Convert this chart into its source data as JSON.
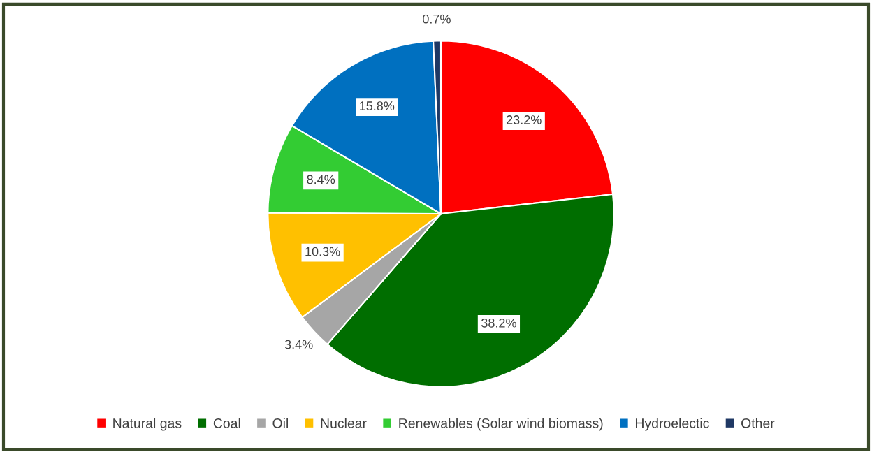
{
  "chart_data": {
    "type": "pie",
    "categories": [
      "Natural gas",
      "Coal",
      "Oil",
      "Nuclear",
      "Renewables (Solar wind biomass)",
      "Hydroelectic",
      "Other"
    ],
    "values": [
      23.2,
      38.2,
      3.4,
      10.3,
      8.4,
      15.8,
      0.7
    ],
    "colors": [
      "#ff0000",
      "#006e00",
      "#a6a6a6",
      "#ffc000",
      "#33cc33",
      "#0070c0",
      "#1f3864"
    ],
    "value_labels": [
      "23.2%",
      "38.2%",
      "3.4%",
      "10.3%",
      "8.4%",
      "15.8%",
      "0.7%"
    ],
    "legend": "bottom"
  }
}
